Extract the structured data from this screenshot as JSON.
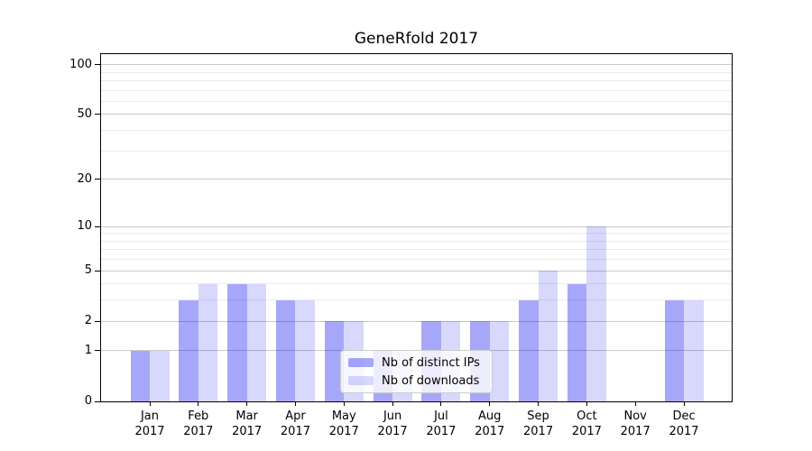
{
  "chart_data": {
    "type": "bar",
    "title": "GeneRfold 2017",
    "categories": [
      "Jan",
      "Feb",
      "Mar",
      "Apr",
      "May",
      "Jun",
      "Jul",
      "Aug",
      "Sep",
      "Oct",
      "Nov",
      "Dec"
    ],
    "year_label": "2017",
    "series": [
      {
        "name": "Nb of distinct IPs",
        "color": "rgba(10,10,240,0.36)",
        "values": [
          1,
          3,
          4,
          3,
          2,
          1,
          2,
          2,
          3,
          4,
          0,
          3
        ]
      },
      {
        "name": "Nb of downloads",
        "color": "rgba(10,10,240,0.16)",
        "values": [
          1,
          4,
          4,
          3,
          2,
          1,
          2,
          2,
          5,
          10,
          0,
          3
        ]
      }
    ],
    "xlabel": "",
    "ylabel": "",
    "yscale": "log1p",
    "ylim": [
      0,
      115
    ],
    "yticks": [
      0,
      1,
      2,
      5,
      10,
      20,
      50,
      100
    ],
    "yticks_minor": [
      3,
      4,
      6,
      7,
      8,
      9,
      30,
      40,
      60,
      70,
      80,
      90
    ],
    "grid": "both",
    "legend_position": "lower-center",
    "colors": {
      "background": "#ffffff",
      "axis": "#000000",
      "grid_major": "#c9c9c9",
      "grid_minor": "#eaeaea",
      "bar_dark_on_white": "#a7a7f8",
      "bar_light_on_white": "#d8d8fb"
    }
  }
}
